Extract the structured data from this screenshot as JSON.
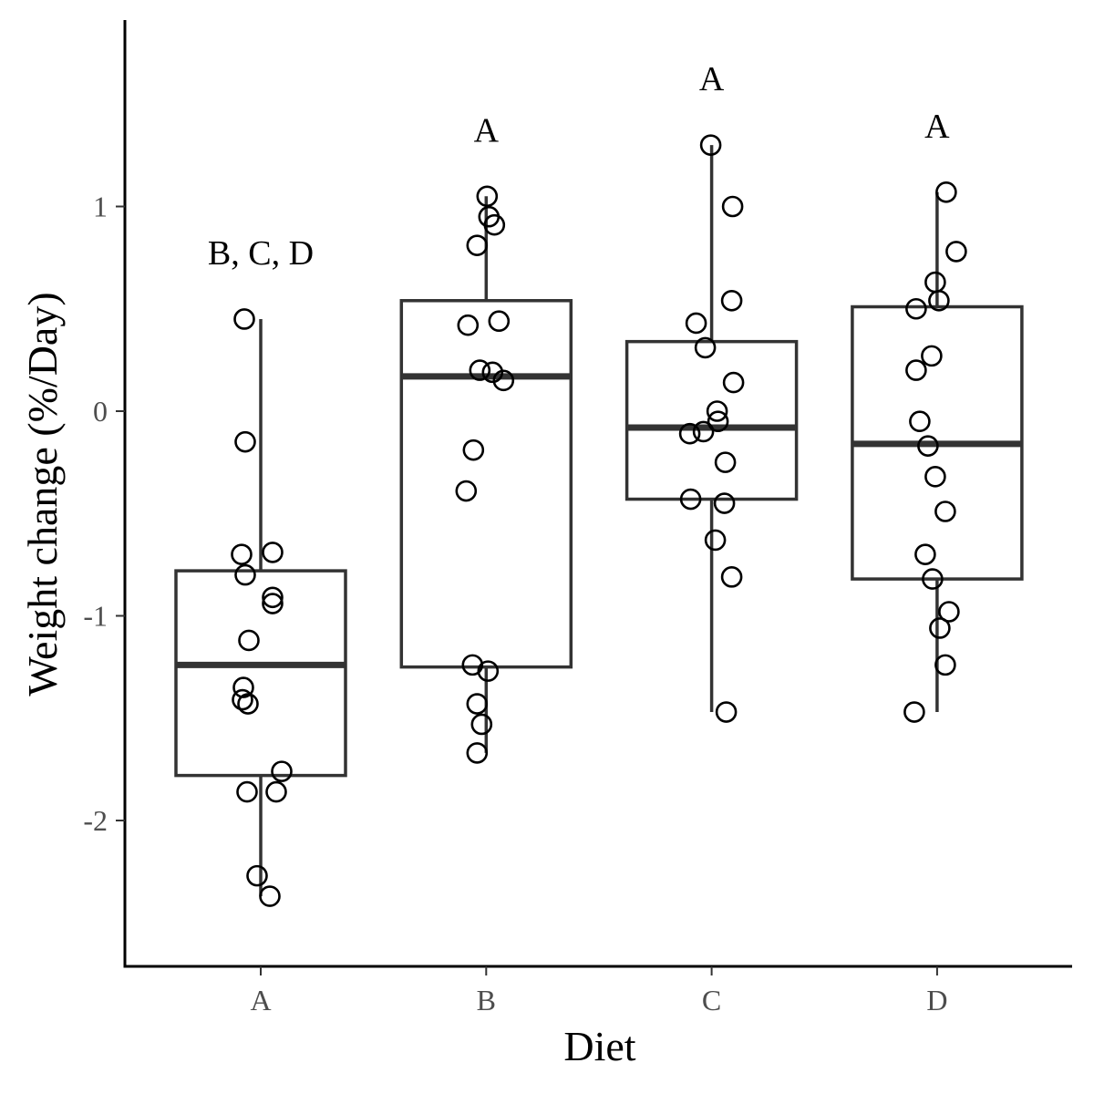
{
  "chart_data": {
    "type": "boxplot",
    "xlabel": "Diet",
    "ylabel": "Weight change (%/Day)",
    "ylim": [
      -2.7,
      1.9
    ],
    "yticks": [
      -2,
      -1,
      0,
      1
    ],
    "ytick_labels": [
      "-2",
      "-1",
      "0",
      "1"
    ],
    "categories": [
      "A",
      "B",
      "C",
      "D"
    ],
    "grid": false,
    "groups": [
      {
        "name": "A",
        "significance_label": "B, C, D",
        "whisker_low": -2.37,
        "q1": -1.78,
        "median": -1.24,
        "q3": -0.78,
        "whisker_high": 0.45,
        "points": [
          {
            "x": -0.18,
            "y": 0.45
          },
          {
            "x": -0.17,
            "y": -0.15
          },
          {
            "x": -0.21,
            "y": -0.7
          },
          {
            "x": -0.17,
            "y": -0.8
          },
          {
            "x": 0.13,
            "y": -0.69
          },
          {
            "x": 0.13,
            "y": -0.91
          },
          {
            "x": 0.13,
            "y": -0.94
          },
          {
            "x": -0.13,
            "y": -1.12
          },
          {
            "x": -0.19,
            "y": -1.35
          },
          {
            "x": -0.2,
            "y": -1.41
          },
          {
            "x": -0.14,
            "y": -1.43
          },
          {
            "x": 0.23,
            "y": -1.76
          },
          {
            "x": -0.15,
            "y": -1.86
          },
          {
            "x": 0.17,
            "y": -1.86
          },
          {
            "x": -0.04,
            "y": -2.27
          },
          {
            "x": 0.1,
            "y": -2.37
          }
        ]
      },
      {
        "name": "B",
        "significance_label": "A",
        "whisker_low": -1.67,
        "q1": -1.25,
        "median": 0.17,
        "q3": 0.54,
        "whisker_high": 1.05,
        "points": [
          {
            "x": 0.01,
            "y": 1.05
          },
          {
            "x": 0.03,
            "y": 0.95
          },
          {
            "x": 0.09,
            "y": 0.91
          },
          {
            "x": -0.1,
            "y": 0.81
          },
          {
            "x": -0.2,
            "y": 0.42
          },
          {
            "x": 0.14,
            "y": 0.44
          },
          {
            "x": -0.07,
            "y": 0.2
          },
          {
            "x": 0.07,
            "y": 0.19
          },
          {
            "x": 0.19,
            "y": 0.15
          },
          {
            "x": -0.14,
            "y": -0.19
          },
          {
            "x": -0.22,
            "y": -0.39
          },
          {
            "x": -0.15,
            "y": -1.24
          },
          {
            "x": 0.02,
            "y": -1.27
          },
          {
            "x": -0.1,
            "y": -1.43
          },
          {
            "x": -0.05,
            "y": -1.53
          },
          {
            "x": -0.1,
            "y": -1.67
          }
        ]
      },
      {
        "name": "C",
        "significance_label": "A",
        "whisker_low": -1.47,
        "q1": -0.43,
        "median": -0.08,
        "q3": 0.34,
        "whisker_high": 1.3,
        "points": [
          {
            "x": -0.01,
            "y": 1.3
          },
          {
            "x": 0.23,
            "y": 1.0
          },
          {
            "x": 0.22,
            "y": 0.54
          },
          {
            "x": -0.17,
            "y": 0.43
          },
          {
            "x": -0.07,
            "y": 0.31
          },
          {
            "x": 0.24,
            "y": 0.14
          },
          {
            "x": 0.06,
            "y": 0.0
          },
          {
            "x": 0.07,
            "y": -0.05
          },
          {
            "x": -0.24,
            "y": -0.11
          },
          {
            "x": -0.09,
            "y": -0.1
          },
          {
            "x": 0.15,
            "y": -0.25
          },
          {
            "x": -0.23,
            "y": -0.43
          },
          {
            "x": 0.14,
            "y": -0.45
          },
          {
            "x": 0.04,
            "y": -0.63
          },
          {
            "x": 0.22,
            "y": -0.81
          },
          {
            "x": 0.16,
            "y": -1.47
          }
        ]
      },
      {
        "name": "D",
        "significance_label": "A",
        "whisker_low": -1.47,
        "q1": -0.82,
        "median": -0.16,
        "q3": 0.51,
        "whisker_high": 1.07,
        "points": [
          {
            "x": 0.1,
            "y": 1.07
          },
          {
            "x": 0.21,
            "y": 0.78
          },
          {
            "x": -0.02,
            "y": 0.63
          },
          {
            "x": 0.02,
            "y": 0.54
          },
          {
            "x": -0.23,
            "y": 0.5
          },
          {
            "x": -0.23,
            "y": 0.2
          },
          {
            "x": -0.06,
            "y": 0.27
          },
          {
            "x": -0.19,
            "y": -0.05
          },
          {
            "x": -0.1,
            "y": -0.17
          },
          {
            "x": -0.02,
            "y": -0.32
          },
          {
            "x": 0.09,
            "y": -0.49
          },
          {
            "x": -0.13,
            "y": -0.7
          },
          {
            "x": -0.05,
            "y": -0.82
          },
          {
            "x": 0.13,
            "y": -0.98
          },
          {
            "x": 0.03,
            "y": -1.06
          },
          {
            "x": 0.09,
            "y": -1.24
          },
          {
            "x": -0.25,
            "y": -1.47
          }
        ]
      }
    ]
  }
}
